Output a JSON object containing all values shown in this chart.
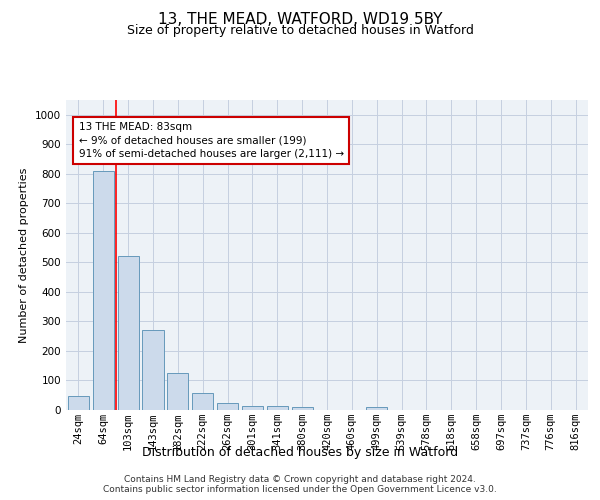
{
  "title1": "13, THE MEAD, WATFORD, WD19 5BY",
  "title2": "Size of property relative to detached houses in Watford",
  "xlabel": "Distribution of detached houses by size in Watford",
  "ylabel": "Number of detached properties",
  "categories": [
    "24sqm",
    "64sqm",
    "103sqm",
    "143sqm",
    "182sqm",
    "222sqm",
    "262sqm",
    "301sqm",
    "341sqm",
    "380sqm",
    "420sqm",
    "460sqm",
    "499sqm",
    "539sqm",
    "578sqm",
    "618sqm",
    "658sqm",
    "697sqm",
    "737sqm",
    "776sqm",
    "816sqm"
  ],
  "values": [
    46,
    810,
    520,
    270,
    125,
    57,
    25,
    13,
    13,
    10,
    0,
    0,
    10,
    0,
    0,
    0,
    0,
    0,
    0,
    0,
    0
  ],
  "bar_color": "#ccdaeb",
  "bar_edge_color": "#6699bb",
  "red_line_x": 1.52,
  "annotation_text": "13 THE MEAD: 83sqm\n← 9% of detached houses are smaller (199)\n91% of semi-detached houses are larger (2,111) →",
  "annotation_box_color": "#ffffff",
  "annotation_box_edge": "#cc0000",
  "ylim": [
    0,
    1050
  ],
  "yticks": [
    0,
    100,
    200,
    300,
    400,
    500,
    600,
    700,
    800,
    900,
    1000
  ],
  "footer1": "Contains HM Land Registry data © Crown copyright and database right 2024.",
  "footer2": "Contains public sector information licensed under the Open Government Licence v3.0.",
  "bg_color": "#edf2f7",
  "grid_color": "#c5cfe0",
  "title1_fontsize": 11,
  "title2_fontsize": 9,
  "xlabel_fontsize": 9,
  "ylabel_fontsize": 8,
  "tick_fontsize": 7.5,
  "footer_fontsize": 6.5
}
